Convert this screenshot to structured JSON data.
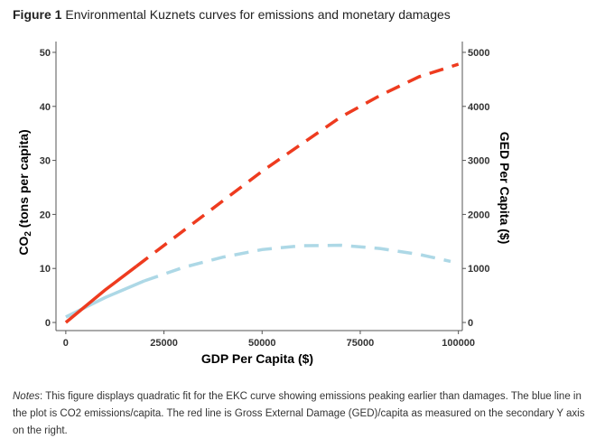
{
  "figure": {
    "label": "Figure 1",
    "title": "Environmental Kuznets curves for emissions and monetary damages"
  },
  "notes": {
    "label": "Notes",
    "text": ": This figure displays quadratic fit for the EKC curve showing emissions peaking earlier than damages. The blue line in the plot is CO2 emissions/capita. The red line is Gross External Damage (GED)/capita as measured on the secondary Y axis on the right."
  },
  "colors": {
    "blue": "#add8e6",
    "red": "#ee3b1f",
    "axis": "#555555"
  },
  "chart_data": {
    "type": "line",
    "xlabel": "GDP Per Capita ($)",
    "ylabel_left": {
      "main": "CO",
      "sub": "2",
      "rest": " (tons per capita)"
    },
    "ylabel_right": "GED Per Capita ($)",
    "xlim": [
      -2500,
      101000
    ],
    "ylim_left": [
      -1.5,
      52
    ],
    "ylim_right": [
      -150,
      5200
    ],
    "xticks": [
      0,
      25000,
      50000,
      75000,
      100000
    ],
    "xtick_labels": [
      "0",
      "25000",
      "50000",
      "75000",
      "100000"
    ],
    "yticks_left": [
      0,
      10,
      20,
      30,
      40,
      50
    ],
    "ytick_labels_left": [
      "0",
      "10",
      "20",
      "30",
      "40",
      "50"
    ],
    "yticks_right": [
      0,
      1000,
      2000,
      3000,
      4000,
      5000
    ],
    "ytick_labels_right": [
      "0",
      "1000",
      "2000",
      "3000",
      "4000",
      "5000"
    ],
    "grid": false,
    "series": [
      {
        "axis": "left",
        "color": "#add8e6",
        "solid_until_x": 20000,
        "x": [
          0,
          10000,
          20000,
          30000,
          40000,
          50000,
          60000,
          70000,
          80000,
          90000,
          98000
        ],
        "y": [
          1.0,
          4.6,
          7.7,
          10.2,
          12.1,
          13.5,
          14.2,
          14.3,
          13.7,
          12.6,
          11.3
        ]
      },
      {
        "axis": "right",
        "color": "#ee3b1f",
        "solid_until_x": 18000,
        "x": [
          0,
          10000,
          20000,
          30000,
          40000,
          50000,
          60000,
          70000,
          80000,
          90000,
          100000
        ],
        "y": [
          0,
          600,
          1150,
          1700,
          2250,
          2800,
          3300,
          3800,
          4200,
          4550,
          4780
        ]
      }
    ]
  }
}
